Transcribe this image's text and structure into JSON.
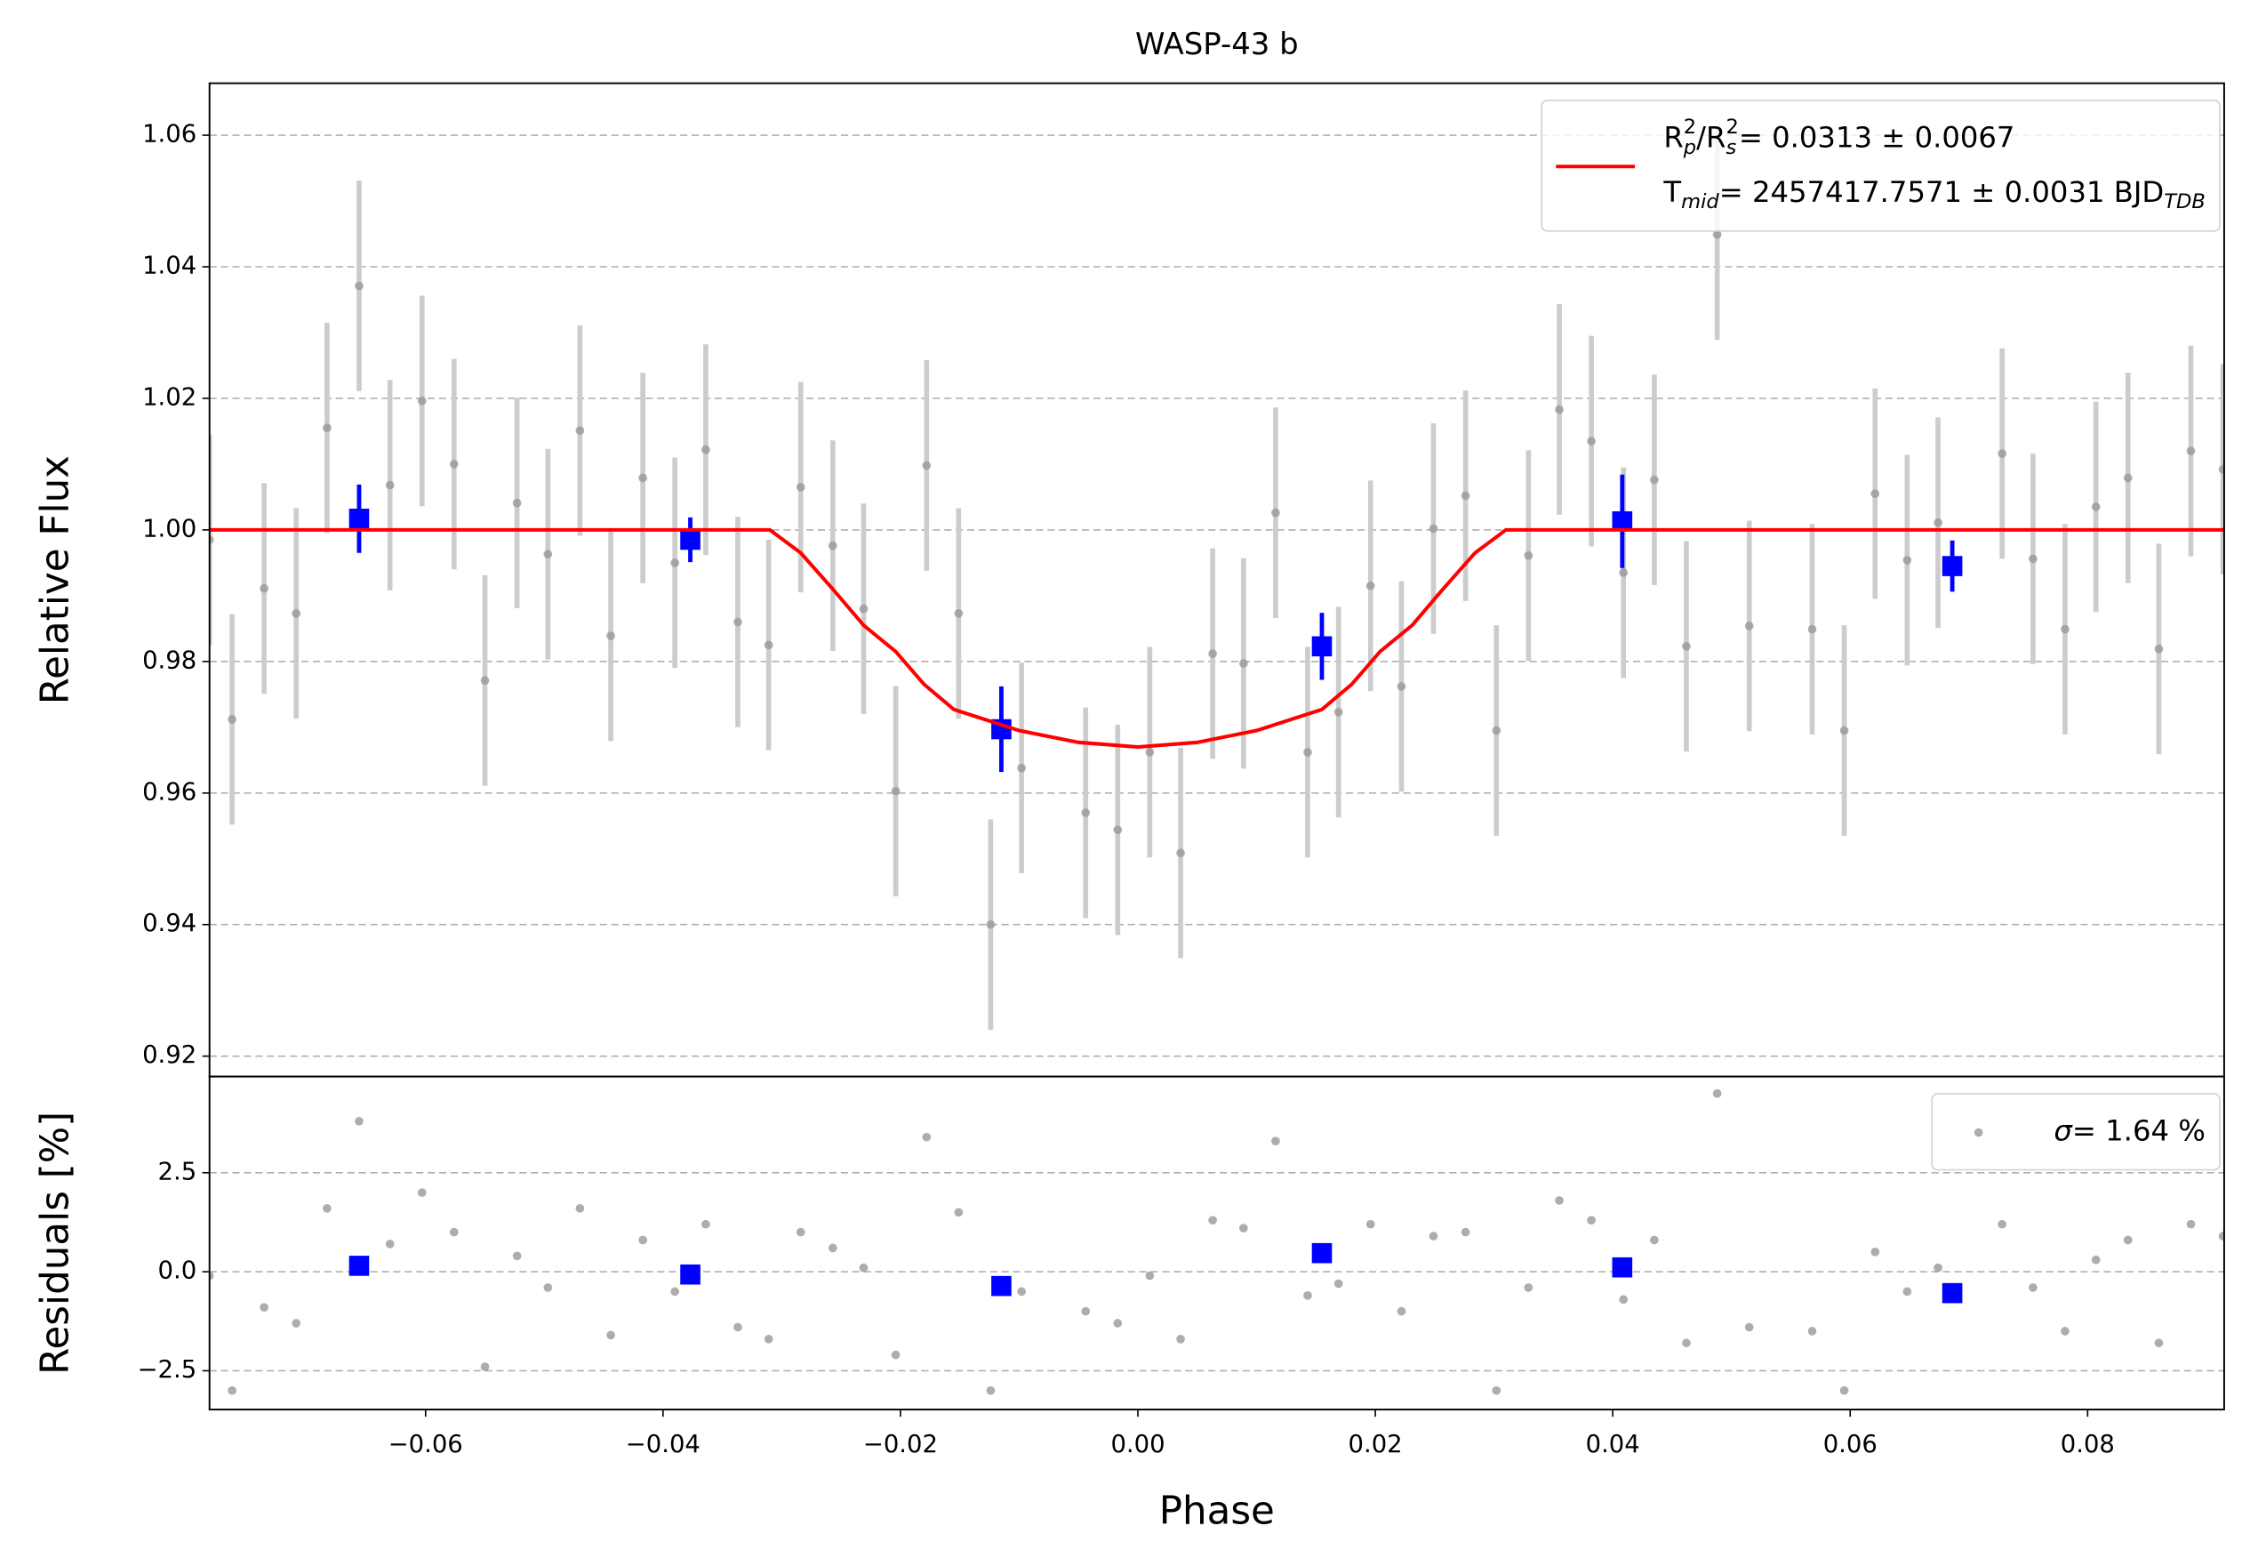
{
  "chart_data": [
    {
      "type": "scatter",
      "title": "WASP-43 b",
      "ylabel": "Relative Flux",
      "xlim": [
        -0.0782,
        0.0915
      ],
      "ylim": [
        0.9169,
        1.0679
      ],
      "yticks": [
        0.92,
        0.94,
        0.96,
        0.98,
        {
          "value": 1,
          "label": "1.00"
        },
        1.02,
        1.04,
        1.06
      ],
      "grid": "y",
      "legend": "upper right",
      "series": [
        {
          "style": "errorbar",
          "marker": "circle",
          "color": "#999999",
          "error_color": "#cccccc",
          "yerr": 0.016,
          "x": [
            -0.0782,
            -0.0763,
            -0.0736,
            -0.0709,
            -0.0683,
            -0.0656,
            -0.063,
            -0.0603,
            -0.0576,
            -0.055,
            -0.0523,
            -0.0497,
            -0.047,
            -0.0444,
            -0.0417,
            -0.039,
            -0.0364,
            -0.0337,
            -0.0311,
            -0.0284,
            -0.0257,
            -0.0231,
            -0.0204,
            -0.0178,
            -0.0151,
            -0.0124,
            -0.0098,
            -0.0044,
            -0.0017,
            0.001,
            0.0036,
            0.0063,
            0.0089,
            0.0116,
            0.0143,
            0.0169,
            0.0196,
            0.0222,
            0.0249,
            0.0276,
            0.0302,
            0.0329,
            0.0355,
            0.0382,
            0.0409,
            0.0435,
            0.0462,
            0.0488,
            0.0515,
            0.0568,
            0.0595,
            0.0621,
            0.0648,
            0.0674,
            0.0728,
            0.0754,
            0.0781,
            0.0807,
            0.0834,
            0.086,
            0.0887,
            0.0914
          ],
          "values": [
            0.9985,
            0.9712,
            0.9911,
            0.9873,
            1.0155,
            1.0371,
            1.0068,
            1.0196,
            1.01,
            0.9771,
            1.0041,
            0.9963,
            1.0151,
            0.9839,
            1.0079,
            0.995,
            1.0122,
            0.986,
            0.9825,
            1.0065,
            0.9976,
            0.988,
            0.9603,
            1.0098,
            0.9873,
            0.94,
            0.9638,
            0.957,
            0.9544,
            0.9662,
            0.9509,
            0.9812,
            0.9797,
            1.0026,
            0.9662,
            0.9723,
            0.9915,
            0.9762,
            1.0002,
            1.0052,
            0.9695,
            0.9961,
            1.0183,
            1.0135,
            0.9935,
            1.0076,
            0.9823,
            1.0449,
            0.9854,
            0.9849,
            0.9695,
            1.0055,
            0.9954,
            1.0011,
            1.0116,
            0.9956,
            0.9849,
            1.0035,
            1.0079,
            0.9819,
            1.012,
            1.0092
          ]
        },
        {
          "style": "errorbar",
          "marker": "square",
          "color": "#0000ff",
          "error_color": "#0000ff",
          "x": [
            -0.0656,
            -0.0377,
            -0.0115,
            0.0155,
            0.0408,
            0.0686
          ],
          "values": [
            1.0017,
            0.9985,
            0.9697,
            0.9823,
            1.0013,
            0.9945
          ],
          "yerrs": [
            0.0052,
            0.0034,
            0.0065,
            0.0051,
            0.0071,
            0.0039
          ]
        },
        {
          "style": "line",
          "color": "#ff0000",
          "name": [
            [
              {
                "text": "R"
              },
              {
                "sub": "p",
                "sup": "2"
              },
              {
                "text": "/R"
              },
              {
                "sub": "s",
                "sup": "2"
              },
              {
                "text": " = 0.0313 ± 0.0067"
              }
            ],
            [
              {
                "text": "T"
              },
              {
                "sub": "mid"
              },
              {
                "text": " = 2457417.7571 ± 0.0031 BJD"
              },
              {
                "sub": "TDB"
              }
            ]
          ],
          "x": [
            -0.0782,
            -0.031,
            -0.0284,
            -0.0257,
            -0.0231,
            -0.0204,
            -0.018,
            -0.0155,
            -0.01,
            -0.005,
            0,
            0.005,
            0.01,
            0.0155,
            0.018,
            0.0204,
            0.0231,
            0.0257,
            0.0284,
            0.031,
            0.0915
          ],
          "values": [
            1.0,
            1.0,
            0.9965,
            0.991,
            0.9855,
            0.9815,
            0.9765,
            0.9727,
            0.9695,
            0.9677,
            0.967,
            0.9677,
            0.9695,
            0.9727,
            0.9765,
            0.9815,
            0.9855,
            0.991,
            0.9965,
            1.0,
            1.0
          ]
        }
      ]
    },
    {
      "type": "scatter",
      "xlabel": "Phase",
      "ylabel": "Residuals [%]",
      "xlim": [
        -0.0782,
        0.0915
      ],
      "ylim": [
        -3.48,
        4.93
      ],
      "xticks": [
        {
          "value": -0.06,
          "label": "−0.06"
        },
        {
          "value": -0.04,
          "label": "−0.04"
        },
        {
          "value": -0.02,
          "label": "−0.02"
        },
        {
          "value": 0,
          "label": "0.00"
        },
        0.02,
        0.04,
        0.06,
        0.08
      ],
      "yticks": [
        {
          "value": -2.5,
          "label": "−2.5"
        },
        {
          "value": 0,
          "label": "0.0"
        },
        2.5
      ],
      "grid": "y",
      "legend": "upper right",
      "series": [
        {
          "style": "points",
          "marker": "circle",
          "color": "#999999",
          "name": [
            [
              {
                "text": "σ",
                "italic": true
              },
              {
                "text": " = 1.64 %"
              }
            ]
          ],
          "x": [
            -0.0782,
            -0.0763,
            -0.0736,
            -0.0709,
            -0.0683,
            -0.0656,
            -0.063,
            -0.0603,
            -0.0576,
            -0.055,
            -0.0523,
            -0.0497,
            -0.047,
            -0.0444,
            -0.0417,
            -0.039,
            -0.0364,
            -0.0337,
            -0.0311,
            -0.0284,
            -0.0257,
            -0.0231,
            -0.0204,
            -0.0178,
            -0.0151,
            -0.0124,
            -0.0098,
            -0.0044,
            -0.0017,
            0.001,
            0.0036,
            0.0063,
            0.0089,
            0.0116,
            0.0143,
            0.0169,
            0.0196,
            0.0222,
            0.0249,
            0.0276,
            0.0302,
            0.0329,
            0.0355,
            0.0382,
            0.0409,
            0.0435,
            0.0462,
            0.0488,
            0.0515,
            0.0568,
            0.0595,
            0.0621,
            0.0648,
            0.0674,
            0.0728,
            0.0754,
            0.0781,
            0.0807,
            0.0834,
            0.086,
            0.0887,
            0.0914
          ],
          "values": [
            -0.1,
            -3.0,
            -0.9,
            -1.3,
            1.6,
            3.8,
            0.7,
            2.0,
            1.0,
            -2.4,
            0.4,
            -0.4,
            1.6,
            -1.6,
            0.8,
            -0.5,
            1.2,
            -1.4,
            -1.7,
            1.0,
            0.6,
            0.1,
            -2.1,
            3.4,
            1.5,
            -3.0,
            -0.5,
            -1.0,
            -1.3,
            -0.1,
            -1.7,
            1.3,
            1.1,
            3.3,
            -0.6,
            -0.3,
            1.2,
            -1.0,
            0.9,
            1.0,
            -3.0,
            -0.4,
            1.8,
            1.3,
            -0.7,
            0.8,
            -1.8,
            4.5,
            -1.4,
            -1.5,
            -3.0,
            0.5,
            -0.5,
            0.1,
            1.2,
            -0.4,
            -1.5,
            0.3,
            0.8,
            -1.8,
            1.2,
            0.9
          ]
        },
        {
          "style": "points",
          "marker": "square",
          "color": "#0000ff",
          "x": [
            -0.0656,
            -0.0377,
            -0.0115,
            0.0155,
            0.0408,
            0.0686
          ],
          "values": [
            0.15,
            -0.07,
            -0.36,
            0.47,
            0.11,
            -0.54
          ]
        }
      ]
    }
  ]
}
